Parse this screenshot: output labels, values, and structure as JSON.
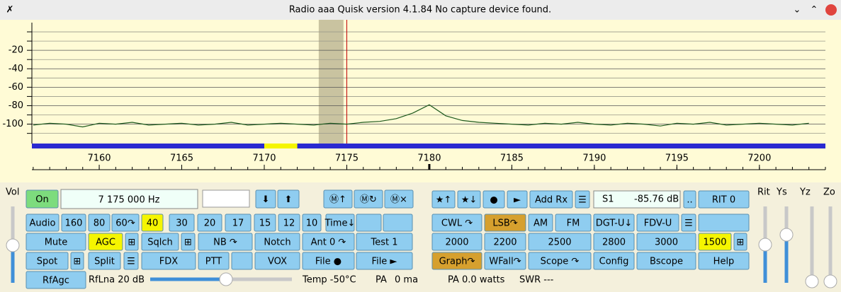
{
  "window": {
    "title": "Radio aaa Quisk version 4.1.84 No capture device found."
  },
  "chart_data": {
    "type": "line",
    "x": [
      7156,
      7157,
      7158,
      7159,
      7160,
      7161,
      7162,
      7163,
      7164,
      7165,
      7166,
      7167,
      7168,
      7169,
      7170,
      7171,
      7172,
      7173,
      7174,
      7175,
      7176,
      7177,
      7178,
      7179,
      7180,
      7181,
      7182,
      7183,
      7184,
      7185,
      7186,
      7187,
      7188,
      7189,
      7190,
      7191,
      7192,
      7193,
      7194,
      7195,
      7196,
      7197,
      7198,
      7199,
      7200,
      7201,
      7202,
      7203
    ],
    "values": [
      -101,
      -99,
      -100,
      -103,
      -99,
      -100,
      -98,
      -101,
      -100,
      -99,
      -101,
      -100,
      -98,
      -101,
      -100,
      -99,
      -100,
      -101,
      -99,
      -100,
      -98,
      -97,
      -94,
      -88,
      -79,
      -91,
      -96,
      -98,
      -99,
      -100,
      -101,
      -99,
      -100,
      -98,
      -100,
      -101,
      -99,
      -100,
      -102,
      -99,
      -100,
      -98,
      -101,
      -100,
      -99,
      -100,
      -101,
      -99
    ],
    "color": "#1e5a1e",
    "xlim": [
      7155.92,
      7204
    ],
    "xticks": [
      7160,
      7165,
      7170,
      7175,
      7180,
      7185,
      7190,
      7195,
      7200
    ],
    "ylim": [
      -121,
      10
    ],
    "yticks": [
      -20,
      -40,
      -60,
      -80,
      -100
    ],
    "minor_ygrid": [
      0,
      -10,
      -30,
      -50,
      -70,
      -90,
      -110
    ],
    "tuned_frequency": 7175,
    "filter_band": [
      7173.3,
      7174.8
    ],
    "band_highlight": [
      7170,
      7172
    ]
  },
  "controls": {
    "buttons": [
      "On",
      "⬇",
      "⬆",
      "Ⓜ↑",
      "Ⓜ↻",
      "Ⓜ×",
      "Audio",
      "160",
      "80",
      "60↷",
      "40",
      "30",
      "20",
      "17",
      "15",
      "12",
      "10",
      "Time↓",
      "Mute",
      "AGC",
      "⊞",
      "Sqlch",
      "⊞",
      "NB ↷",
      "Notch",
      "Ant 0 ↷",
      "Test 1",
      "Spot",
      "⊞",
      "Split",
      "☰",
      "FDX",
      "PTT",
      "VOX",
      "File ●",
      "File ►",
      "RfAgc",
      "★↑",
      "★↓",
      "●",
      "►",
      "Add Rx",
      "☰",
      "..",
      "RIT 0",
      "CWL ↷",
      "LSB↷",
      "AM",
      "FM",
      "DGT-U↓",
      "FDV-U",
      "☰",
      "2000",
      "2200",
      "2500",
      "2800",
      "3000",
      "1500",
      "⊞",
      "Graph↷",
      "WFall↷",
      "Scope ↷",
      "Config",
      "Bscope",
      "Help"
    ],
    "frequency": "7 175 000 Hz",
    "smeter": [
      "S1",
      "-85.76 dB"
    ],
    "labels": [
      "Vol",
      "Rit",
      "Ys",
      "Yz",
      "Zo",
      "RfLna 20 dB",
      "Temp -50°C",
      "PA",
      "0 ma",
      "PA 0.0 watts",
      "SWR ---"
    ]
  }
}
